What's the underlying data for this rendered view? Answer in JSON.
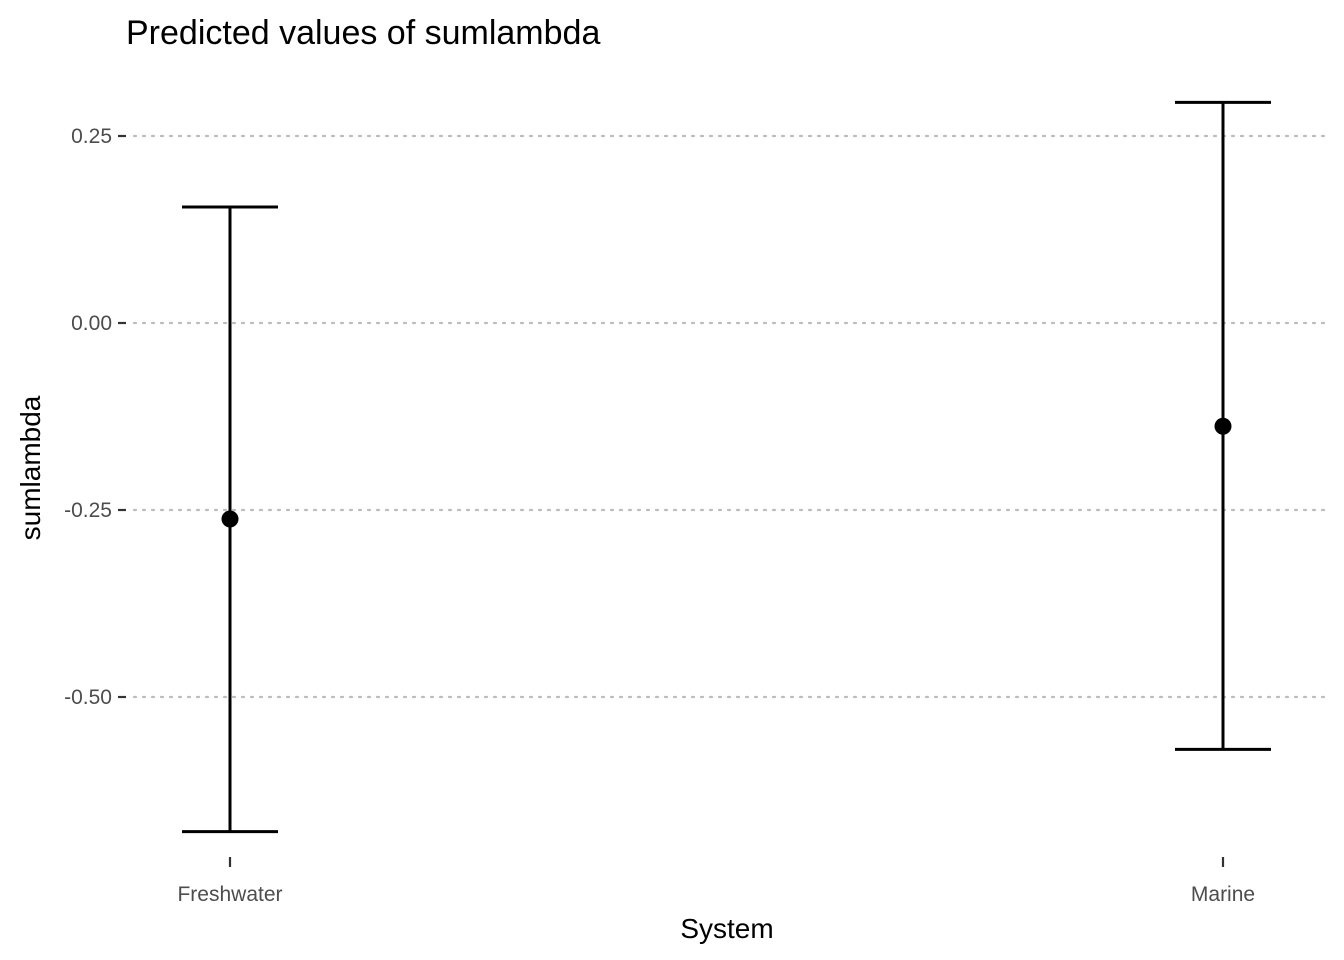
{
  "chart_data": {
    "type": "scatter",
    "title": "Predicted values of sumlambda",
    "xlabel": "System",
    "ylabel": "sumlambda",
    "categories": [
      "Freshwater",
      "Marine"
    ],
    "series": [
      {
        "values": [
          -0.262,
          -0.138
        ],
        "ci_low": [
          -0.68,
          -0.57
        ],
        "ci_high": [
          0.155,
          0.295
        ]
      }
    ],
    "y_ticks": [
      0.25,
      0.0,
      -0.25,
      -0.5
    ],
    "y_tick_labels": [
      "0.25",
      "0.00",
      "-0.25",
      "-0.50"
    ],
    "ylim": [
      -0.73,
      0.33
    ],
    "grid": "horizontal dotted",
    "legend": "none"
  }
}
